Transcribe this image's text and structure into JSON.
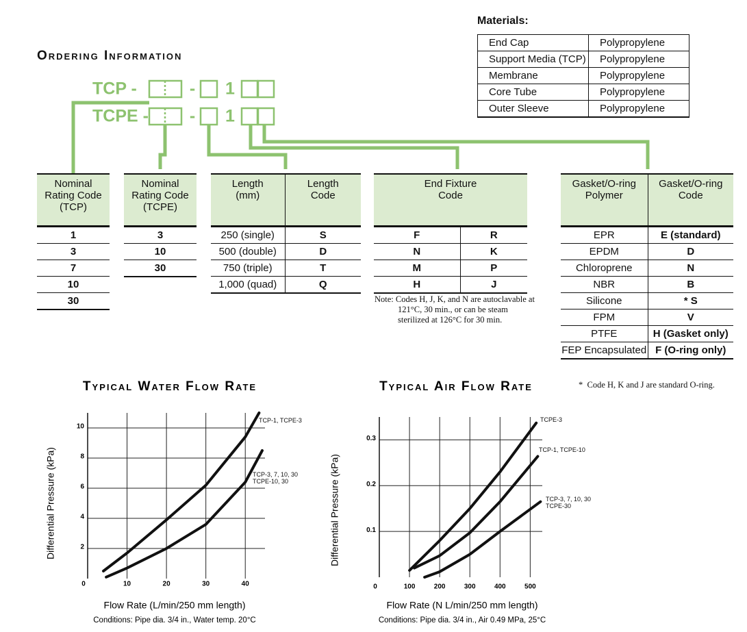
{
  "materials": {
    "title": "Materials:",
    "rows": [
      [
        "End Cap",
        "Polypropylene"
      ],
      [
        "Support Media (TCP)",
        "Polypropylene"
      ],
      [
        "Membrane",
        "Polypropylene"
      ],
      [
        "Core Tube",
        "Polypropylene"
      ],
      [
        "Outer Sleeve",
        "Polypropylene"
      ]
    ]
  },
  "ordering": {
    "title": "Ordering Information",
    "codes": [
      {
        "prefix": "TCP -",
        "sep": "-",
        "digit": "1"
      },
      {
        "prefix": "TCPE -",
        "sep": "-",
        "digit": "1"
      }
    ]
  },
  "tables": [
    {
      "headers": [
        "Nominal Rating Code (TCP)"
      ],
      "rows": [
        [
          "1"
        ],
        [
          "3"
        ],
        [
          "7"
        ],
        [
          "10"
        ],
        [
          "30"
        ]
      ]
    },
    {
      "headers": [
        "Nominal Rating Code (TCPE)"
      ],
      "rows": [
        [
          "3"
        ],
        [
          "10"
        ],
        [
          "30"
        ]
      ]
    },
    {
      "headers": [
        "Length (mm)",
        "Length Code"
      ],
      "rows": [
        [
          "250 (single)",
          "S"
        ],
        [
          "500 (double)",
          "D"
        ],
        [
          "750 (triple)",
          "T"
        ],
        [
          "1,000 (quad)",
          "Q"
        ]
      ]
    },
    {
      "headers": [
        "End Fixture Code"
      ],
      "rows": [
        [
          "F",
          "R"
        ],
        [
          "N",
          "K"
        ],
        [
          "M",
          "P"
        ],
        [
          "H",
          "J"
        ]
      ],
      "note": "Note: Codes H, J, K, and N are autoclavable at 121°C, 30 min., or can be steam sterilized at 126°C for 30 min."
    },
    {
      "headers": [
        "Gasket/O-ring Polymer",
        "Gasket/O-ring Code"
      ],
      "rows": [
        [
          "EPR",
          "E (standard)"
        ],
        [
          "EPDM",
          "D"
        ],
        [
          "Chloroprene",
          "N"
        ],
        [
          "NBR",
          "B"
        ],
        [
          "Silicone",
          "* S"
        ],
        [
          "FPM",
          "V"
        ],
        [
          "PTFE",
          "H (Gasket only)"
        ],
        [
          "FEP Encapsulated",
          "F (O-ring only)"
        ]
      ],
      "note": "*  Code H, K and J are standard O-ring."
    }
  ],
  "chart_data": [
    {
      "type": "line",
      "title": "Typical Water Flow Rate",
      "xlabel": "Flow Rate (L/min/250 mm length)",
      "ylabel": "Differential Pressure (kPa)",
      "conditions": "Conditions: Pipe dia. 3/4 in., Water temp. 20°C",
      "xlim": [
        0,
        45
      ],
      "ylim": [
        0,
        11
      ],
      "xticks": [
        0,
        10,
        20,
        30,
        40
      ],
      "yticks": [
        2,
        4,
        6,
        8,
        10
      ],
      "grid": true,
      "series": [
        {
          "name": "TCP-1, TCPE-3",
          "color": "#111111",
          "x": [
            4,
            10,
            20,
            30,
            40,
            43.5
          ],
          "values": [
            0.5,
            1.7,
            3.9,
            6.2,
            9.4,
            11
          ]
        },
        {
          "name": "TCP-3, 7, 10, 30\nTCPE-10, 30",
          "color": "#111111",
          "x": [
            4.7,
            10,
            20,
            30,
            40,
            44.3
          ],
          "values": [
            0.1,
            0.7,
            2.0,
            3.6,
            6.4,
            8.5
          ]
        }
      ]
    },
    {
      "type": "line",
      "title": "Typical Air Flow Rate",
      "xlabel": "Flow Rate (N L/min/250 mm length)",
      "ylabel": "Differential Pressure (kPa)",
      "conditions": "Conditions: Pipe dia. 3/4 in., Air 0.49 MPa, 25°C",
      "xlim": [
        0,
        540
      ],
      "ylim": [
        0,
        0.35
      ],
      "xticks": [
        0,
        100,
        200,
        300,
        400,
        500
      ],
      "yticks": [
        0.1,
        0.2,
        0.3
      ],
      "grid": true,
      "series": [
        {
          "name": "TCPE-3",
          "color": "#111111",
          "x": [
            100,
            200,
            300,
            400,
            520
          ],
          "values": [
            0.015,
            0.08,
            0.15,
            0.23,
            0.337
          ]
        },
        {
          "name": "TCP-1, TCPE-10",
          "color": "#111111",
          "x": [
            116,
            200,
            300,
            400,
            525
          ],
          "values": [
            0.02,
            0.047,
            0.097,
            0.165,
            0.264
          ]
        },
        {
          "name": "TCP-3, 7, 10, 30\nTCPE-30",
          "color": "#111111",
          "x": [
            150,
            200,
            300,
            400,
            534
          ],
          "values": [
            0.0,
            0.012,
            0.05,
            0.1,
            0.165
          ]
        }
      ]
    }
  ]
}
